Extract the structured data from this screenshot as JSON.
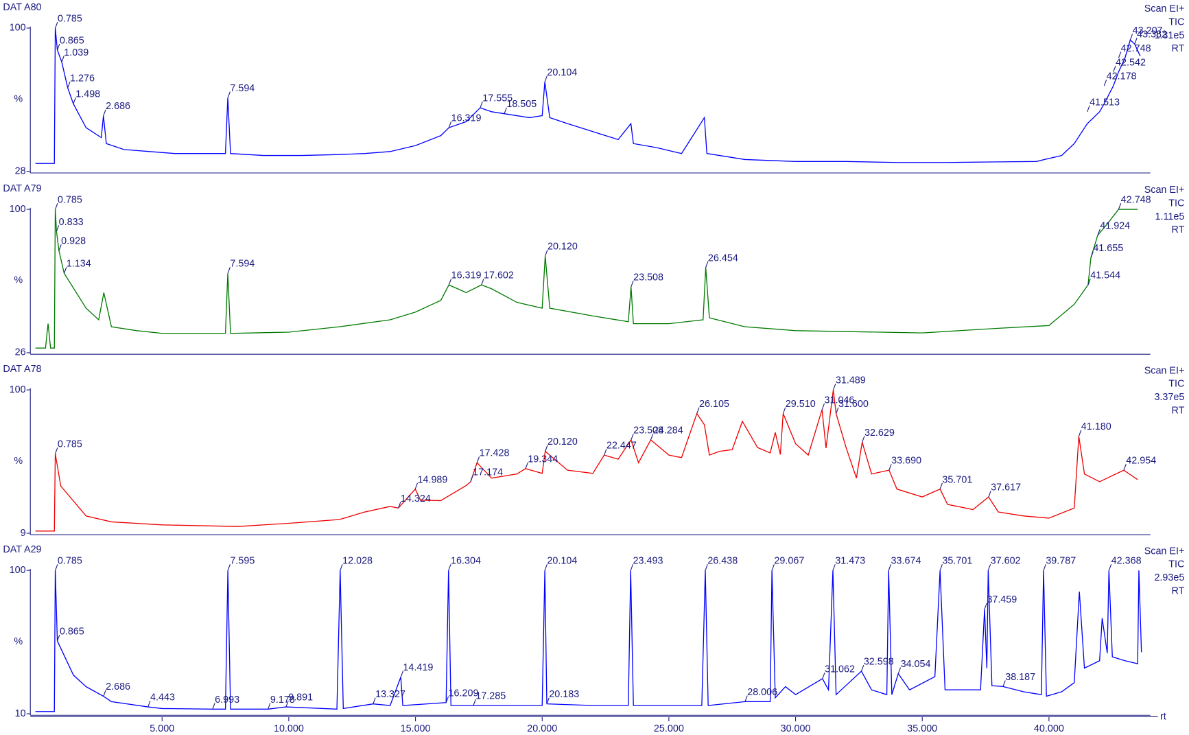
{
  "chart_data": [
    {
      "type": "line",
      "title": "DAT A80",
      "side_labels": [
        "Scan EI+",
        "TIC",
        "1.31e5",
        "RT"
      ],
      "y_label": "%",
      "color": "#0000ff",
      "xlim": [
        -0.2,
        44.3
      ],
      "ylim": [
        28,
        100
      ],
      "yticks": [
        28,
        100
      ],
      "x": [
        0,
        0.75,
        0.785,
        0.865,
        1.039,
        1.276,
        1.498,
        2.0,
        2.6,
        2.686,
        2.8,
        3.5,
        4.5,
        5.5,
        6.5,
        7.5,
        7.594,
        7.7,
        9,
        10.5,
        12,
        13,
        14,
        15,
        16,
        16.319,
        17,
        17.555,
        18,
        18.505,
        19,
        19.5,
        20.0,
        20.104,
        20.3,
        21,
        22,
        23,
        23.5,
        23.6,
        24.5,
        25.5,
        26.4,
        26.5,
        27,
        28,
        30,
        32,
        34,
        36,
        38,
        39.5,
        40.5,
        41,
        41.513,
        42,
        42.178,
        42.542,
        42.748,
        43,
        43.207,
        43.382,
        43.6
      ],
      "values": [
        32,
        32,
        100,
        89,
        83,
        70,
        62,
        50,
        45,
        56,
        42,
        39,
        38,
        37,
        37,
        37,
        65,
        37,
        36,
        36,
        36.5,
        37,
        38,
        41,
        46,
        50,
        53,
        60,
        58,
        57,
        56,
        55,
        56,
        73,
        55,
        52,
        48,
        44,
        52,
        42,
        40,
        37,
        55,
        37,
        36,
        34,
        33,
        33,
        32.5,
        32.5,
        32.8,
        33,
        36,
        42,
        52,
        58,
        62,
        71,
        78,
        85,
        94,
        92,
        86
      ],
      "annotations": [
        {
          "label": "0.785",
          "x": 0.785,
          "y": 100
        },
        {
          "label": "0.865",
          "x": 0.865,
          "y": 89
        },
        {
          "label": "1.039",
          "x": 1.039,
          "y": 83
        },
        {
          "label": "1.276",
          "x": 1.276,
          "y": 70
        },
        {
          "label": "1.498",
          "x": 1.498,
          "y": 62
        },
        {
          "label": "2.686",
          "x": 2.686,
          "y": 56
        },
        {
          "label": "7.594",
          "x": 7.594,
          "y": 65
        },
        {
          "label": "16.319",
          "x": 16.319,
          "y": 50
        },
        {
          "label": "17.555",
          "x": 17.555,
          "y": 60
        },
        {
          "label": "18.505",
          "x": 18.505,
          "y": 57
        },
        {
          "label": "20.104",
          "x": 20.104,
          "y": 73
        },
        {
          "label": "41.513",
          "x": 41.513,
          "y": 58
        },
        {
          "label": "42.178",
          "x": 42.178,
          "y": 71
        },
        {
          "label": "42.542",
          "x": 42.542,
          "y": 78
        },
        {
          "label": "42.748",
          "x": 42.748,
          "y": 85
        },
        {
          "label": "43.207",
          "x": 43.207,
          "y": 94
        },
        {
          "label": "43.382",
          "x": 43.382,
          "y": 92
        }
      ]
    },
    {
      "type": "line",
      "title": "DAT A79",
      "side_labels": [
        "Scan EI+",
        "TIC",
        "1.11e5",
        "RT"
      ],
      "y_label": "%",
      "color": "#007a00",
      "xlim": [
        -0.2,
        44.3
      ],
      "ylim": [
        26,
        100
      ],
      "yticks": [
        26,
        100
      ],
      "x": [
        0,
        0.4,
        0.5,
        0.6,
        0.75,
        0.785,
        0.833,
        0.928,
        1.134,
        2,
        2.5,
        2.7,
        3,
        4,
        5,
        7.5,
        7.594,
        7.7,
        10,
        12,
        14,
        15,
        16,
        16.319,
        17,
        17.602,
        18,
        19,
        20,
        20.12,
        20.3,
        22,
        23.4,
        23.508,
        23.6,
        25,
        26.35,
        26.454,
        26.6,
        28,
        30,
        35,
        38,
        40,
        41,
        41.544,
        41.655,
        41.924,
        42.3,
        42.748,
        43.5
      ],
      "values": [
        28.4,
        28.4,
        41,
        28.4,
        28.4,
        100,
        88.6,
        78.7,
        67,
        49,
        43,
        57,
        39.4,
        37.4,
        36,
        36,
        67,
        36,
        36.6,
        39.4,
        43,
        47,
        53,
        61,
        57,
        61,
        59,
        52,
        49,
        76,
        49,
        45,
        42,
        60,
        41,
        41,
        43,
        70,
        44,
        39.4,
        37.4,
        36.2,
        38.6,
        40,
        51,
        61,
        75,
        86.6,
        92.5,
        100,
        100
      ],
      "annotations": [
        {
          "label": "0.785",
          "x": 0.785,
          "y": 100
        },
        {
          "label": "0.833",
          "x": 0.833,
          "y": 88.6
        },
        {
          "label": "0.928",
          "x": 0.928,
          "y": 78.7
        },
        {
          "label": "1.134",
          "x": 1.134,
          "y": 67
        },
        {
          "label": "7.594",
          "x": 7.594,
          "y": 67
        },
        {
          "label": "16.319",
          "x": 16.319,
          "y": 61
        },
        {
          "label": "17.602",
          "x": 17.602,
          "y": 61
        },
        {
          "label": "20.120",
          "x": 20.12,
          "y": 76
        },
        {
          "label": "23.508",
          "x": 23.508,
          "y": 60
        },
        {
          "label": "26.454",
          "x": 26.454,
          "y": 70
        },
        {
          "label": "41.544",
          "x": 41.544,
          "y": 61
        },
        {
          "label": "41.655",
          "x": 41.655,
          "y": 75
        },
        {
          "label": "41.924",
          "x": 41.924,
          "y": 86.6
        },
        {
          "label": "42.748",
          "x": 42.748,
          "y": 100
        }
      ]
    },
    {
      "type": "line",
      "title": "DAT A78",
      "side_labels": [
        "Scan EI+",
        "TIC",
        "3.37e5",
        "RT"
      ],
      "y_label": "%",
      "color": "#ee0000",
      "xlim": [
        -0.2,
        44.3
      ],
      "ylim": [
        9,
        100
      ],
      "yticks": [
        9,
        100
      ],
      "x": [
        0,
        0.75,
        0.785,
        1,
        2,
        3,
        5,
        8,
        10,
        12,
        13,
        14,
        14.324,
        14.989,
        15.2,
        16,
        17,
        17.174,
        17.428,
        18,
        19,
        19.344,
        20,
        20.12,
        21,
        22,
        22.447,
        23,
        23.508,
        23.8,
        24.284,
        25,
        25.5,
        26.105,
        26.4,
        26.6,
        27,
        27.5,
        27.9,
        28.5,
        29,
        29.2,
        29.4,
        29.51,
        30,
        30.5,
        31.046,
        31.2,
        31.489,
        31.6,
        32,
        32.4,
        32.629,
        33,
        33.69,
        34,
        35,
        35.701,
        36,
        37,
        37.617,
        38,
        39,
        40,
        41,
        41.18,
        41.4,
        42,
        42.954,
        43.5
      ],
      "values": [
        10.4,
        10.4,
        59.5,
        39,
        20,
        16.2,
        14.3,
        13.3,
        15.3,
        17.7,
        22.5,
        26,
        25,
        37,
        30,
        29.7,
        39.3,
        41.7,
        53.8,
        44,
        46.6,
        50,
        47,
        61,
        49,
        47,
        58.6,
        56,
        68.2,
        53.8,
        68.2,
        58.6,
        57,
        85,
        77.9,
        58.6,
        61,
        62,
        80,
        63.4,
        60,
        73,
        59,
        85,
        65.8,
        58.6,
        87.5,
        63,
        100,
        85,
        63,
        44,
        66.8,
        46.6,
        49,
        37,
        32,
        37,
        27.3,
        24,
        32,
        22.5,
        20,
        18.6,
        25,
        70.6,
        46.6,
        41.7,
        49,
        43
      ],
      "annotations": [
        {
          "label": "0.785",
          "x": 0.785,
          "y": 59.5
        },
        {
          "label": "14.324",
          "x": 14.324,
          "y": 25
        },
        {
          "label": "14.989",
          "x": 14.989,
          "y": 37
        },
        {
          "label": "17.174",
          "x": 17.174,
          "y": 41.7
        },
        {
          "label": "17.428",
          "x": 17.428,
          "y": 53.8
        },
        {
          "label": "19.344",
          "x": 19.344,
          "y": 50
        },
        {
          "label": "20.120",
          "x": 20.12,
          "y": 61
        },
        {
          "label": "22.447",
          "x": 22.447,
          "y": 58.6
        },
        {
          "label": "23.508",
          "x": 23.508,
          "y": 68.2
        },
        {
          "label": "24.284",
          "x": 24.284,
          "y": 68.2
        },
        {
          "label": "26.105",
          "x": 26.105,
          "y": 85
        },
        {
          "label": "29.510",
          "x": 29.51,
          "y": 85
        },
        {
          "label": "31.046",
          "x": 31.046,
          "y": 87.5
        },
        {
          "label": "31.489",
          "x": 31.489,
          "y": 100
        },
        {
          "label": "31.600",
          "x": 31.6,
          "y": 85
        },
        {
          "label": "32.629",
          "x": 32.629,
          "y": 66.8
        },
        {
          "label": "33.690",
          "x": 33.69,
          "y": 49
        },
        {
          "label": "35.701",
          "x": 35.701,
          "y": 37
        },
        {
          "label": "37.617",
          "x": 37.617,
          "y": 32
        },
        {
          "label": "41.180",
          "x": 41.18,
          "y": 70.6
        },
        {
          "label": "42.954",
          "x": 42.954,
          "y": 49
        }
      ]
    },
    {
      "type": "line",
      "title": "DAT A29",
      "side_labels": [
        "Scan EI+",
        "TIC",
        "2.93e5",
        "RT"
      ],
      "y_label": "%",
      "x_label": "rt",
      "color": "#0000ff",
      "xlim": [
        -0.2,
        44.3
      ],
      "ylim": [
        10,
        100
      ],
      "yticks": [
        10,
        100
      ],
      "xticks": [
        {
          "value": 5,
          "label": "5.000"
        },
        {
          "value": 10,
          "label": "10.000"
        },
        {
          "value": 15,
          "label": "15.000"
        },
        {
          "value": 20,
          "label": "20.000"
        },
        {
          "value": 25,
          "label": "25.000"
        },
        {
          "value": 30,
          "label": "30.000"
        },
        {
          "value": 35,
          "label": "35.000"
        },
        {
          "value": 40,
          "label": "40.000"
        }
      ],
      "x": [
        0,
        0.75,
        0.785,
        0.865,
        1.5,
        2,
        2.686,
        3,
        4.443,
        5,
        6.993,
        7.5,
        7.595,
        7.7,
        9.178,
        9.891,
        11.9,
        12.028,
        12.15,
        13.327,
        14,
        14.419,
        14.5,
        16.209,
        16.304,
        16.4,
        17.285,
        20.0,
        20.104,
        20.183,
        22,
        23.4,
        23.493,
        23.6,
        26.3,
        26.438,
        26.55,
        28.006,
        29,
        29.067,
        29.2,
        29.6,
        30,
        31.062,
        31.3,
        31.473,
        31.6,
        32.598,
        33,
        33.6,
        33.674,
        33.8,
        34.054,
        34.5,
        35.5,
        35.701,
        35.9,
        37.3,
        37.459,
        37.55,
        37.602,
        37.75,
        38.187,
        39,
        39.7,
        39.787,
        39.9,
        40.5,
        41,
        41.2,
        41.4,
        42,
        42.1,
        42.3,
        42.368,
        42.5,
        43,
        43.5,
        43.55,
        43.65
      ],
      "values": [
        11.4,
        11.4,
        100,
        55.7,
        34.3,
        27,
        21,
        17.6,
        14.3,
        13.3,
        12.9,
        12.9,
        100,
        12.9,
        12.9,
        14.3,
        12.9,
        100,
        13.3,
        16.2,
        15.2,
        33,
        15.2,
        17,
        100,
        15.2,
        15.2,
        15.2,
        100,
        16.2,
        15.2,
        15.2,
        100,
        15.2,
        15.2,
        100,
        15.2,
        17.6,
        17.6,
        100,
        20,
        27,
        22,
        32,
        25,
        100,
        22,
        36.7,
        25,
        22,
        100,
        22,
        35.2,
        25,
        33.3,
        100,
        25,
        25,
        75.7,
        38.6,
        100,
        27.6,
        27.1,
        23.8,
        22,
        100,
        21,
        23.8,
        29.5,
        86.7,
        38.6,
        43.3,
        70,
        48,
        100,
        45.7,
        43.3,
        41.4,
        100,
        48.6
      ],
      "annotations": [
        {
          "label": "0.785",
          "x": 0.785,
          "y": 100
        },
        {
          "label": "0.865",
          "x": 0.865,
          "y": 55.7
        },
        {
          "label": "2.686",
          "x": 2.686,
          "y": 21
        },
        {
          "label": "4.443",
          "x": 4.443,
          "y": 14.3
        },
        {
          "label": "6.993",
          "x": 6.993,
          "y": 12.9
        },
        {
          "label": "7.595",
          "x": 7.595,
          "y": 100
        },
        {
          "label": "9.178",
          "x": 9.178,
          "y": 12.9
        },
        {
          "label": "9.891",
          "x": 9.891,
          "y": 14.3
        },
        {
          "label": "12.028",
          "x": 12.028,
          "y": 100
        },
        {
          "label": "13.327",
          "x": 13.327,
          "y": 16.2
        },
        {
          "label": "14.419",
          "x": 14.419,
          "y": 33
        },
        {
          "label": "16.209",
          "x": 16.209,
          "y": 17
        },
        {
          "label": "16.304",
          "x": 16.304,
          "y": 100
        },
        {
          "label": "17.285",
          "x": 17.285,
          "y": 15.2
        },
        {
          "label": "20.104",
          "x": 20.104,
          "y": 100
        },
        {
          "label": "20.183",
          "x": 20.183,
          "y": 16.2
        },
        {
          "label": "23.493",
          "x": 23.493,
          "y": 100
        },
        {
          "label": "26.438",
          "x": 26.438,
          "y": 100
        },
        {
          "label": "28.006",
          "x": 28.006,
          "y": 17.6
        },
        {
          "label": "29.067",
          "x": 29.067,
          "y": 100
        },
        {
          "label": "31.062",
          "x": 31.062,
          "y": 32
        },
        {
          "label": "31.473",
          "x": 31.473,
          "y": 100
        },
        {
          "label": "32.598",
          "x": 32.598,
          "y": 36.7
        },
        {
          "label": "33.674",
          "x": 33.674,
          "y": 100
        },
        {
          "label": "34.054",
          "x": 34.054,
          "y": 35.2
        },
        {
          "label": "35.701",
          "x": 35.701,
          "y": 100
        },
        {
          "label": "37.459",
          "x": 37.459,
          "y": 75.7
        },
        {
          "label": "37.602",
          "x": 37.602,
          "y": 100
        },
        {
          "label": "38.187",
          "x": 38.187,
          "y": 27.1
        },
        {
          "label": "39.787",
          "x": 39.787,
          "y": 100
        },
        {
          "label": "42.368",
          "x": 42.368,
          "y": 100
        }
      ]
    }
  ]
}
